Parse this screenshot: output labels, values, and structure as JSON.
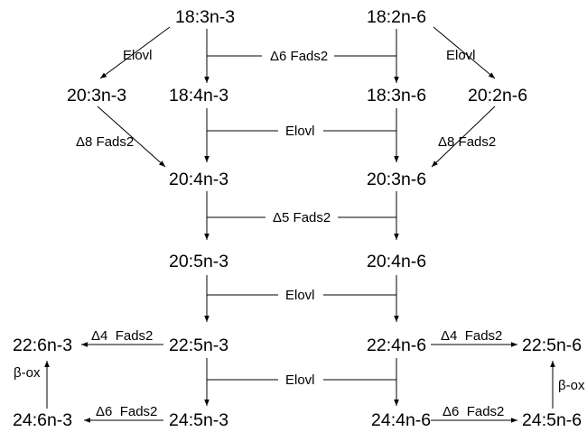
{
  "fatty_acids": {
    "n3_18_3": "18:3n-3",
    "n6_18_2": "18:2n-6",
    "n3_20_3": "20:3n-3",
    "n3_18_4": "18:4n-3",
    "n6_18_3": "18:3n-6",
    "n6_20_2": "20:2n-6",
    "n3_20_4": "20:4n-3",
    "n6_20_3": "20:3n-6",
    "n3_20_5": "20:5n-3",
    "n6_20_4": "20:4n-6",
    "n3_22_6": "22:6n-3",
    "n3_22_5": "22:5n-3",
    "n6_22_4": "22:4n-6",
    "n6_22_5": "22:5n-6",
    "n3_24_6": "24:6n-3",
    "n3_24_5": "24:5n-3",
    "n6_24_4": "24:4n-6",
    "n6_24_5": "24:5n-6"
  },
  "enzymes": {
    "elovl_left_top": "Elovl",
    "elovl_right_top": "Elovl",
    "d6_fads2_top": "Δ6 Fads2",
    "elovl_row2": "Elovl",
    "d8_fads2_left": "Δ8 Fads2",
    "d8_fads2_right": "Δ8 Fads2",
    "d5_fads2": "Δ5 Fads2",
    "elovl_row4": "Elovl",
    "d4_fads2_left": "Δ4  Fads2",
    "d4_fads2_right": "Δ4  Fads2",
    "elovl_row5": "Elovl",
    "d6_fads2_left_bottom": "Δ6  Fads2",
    "d6_fads2_right_bottom": "Δ6  Fads2",
    "beta_ox_left": "β-ox",
    "beta_ox_right": "β-ox"
  }
}
